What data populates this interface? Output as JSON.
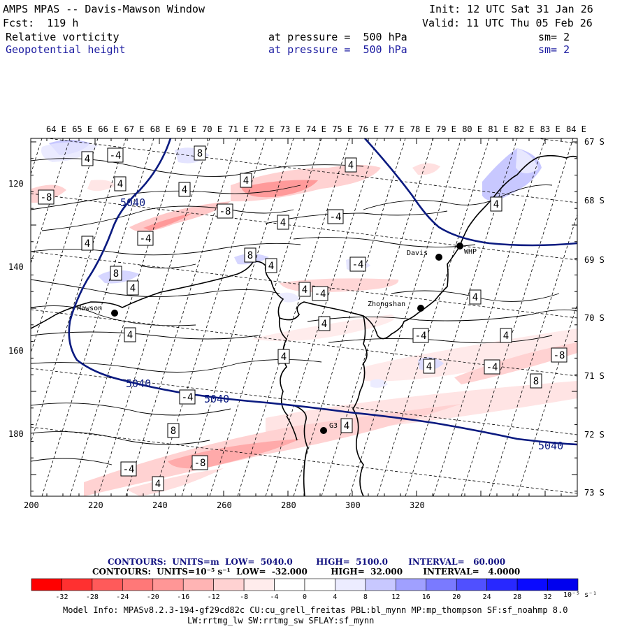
{
  "header": {
    "title": "AMPS MPAS -- Davis-Mawson Window",
    "init": "Init: 12 UTC Sat 31 Jan 26",
    "fcst": "Fcst:  119 h",
    "valid": "Valid: 11 UTC Thu 05 Feb 26",
    "field1": {
      "name": "Relative vorticity",
      "pressure": "at pressure =  500 hPa",
      "sm": "sm= 2"
    },
    "field2": {
      "name": "Geopotential height",
      "pressure": "at pressure =  500 hPa",
      "sm": "sm= 2"
    }
  },
  "map": {
    "top_lon_labels": [
      "64 E",
      "65 E",
      "66 E",
      "67 E",
      "68 E",
      "69 E",
      "70 E",
      "71 E",
      "72 E",
      "73 E",
      "74 E",
      "75 E",
      "76 E",
      "77 E",
      "78 E",
      "79 E",
      "80 E",
      "81 E",
      "82 E",
      "83 E",
      "84 E"
    ],
    "right_lat_labels": [
      "67 S",
      "68 S",
      "69 S",
      "70 S",
      "71 S",
      "72 S",
      "73 S"
    ],
    "x_ticks": [
      "200",
      "220",
      "240",
      "260",
      "280",
      "300",
      "320"
    ],
    "y_ticks": [
      "120",
      "140",
      "160",
      "180"
    ],
    "stations": [
      {
        "name": "Mawson"
      },
      {
        "name": "Davis"
      },
      {
        "name": "WHP"
      },
      {
        "name": "Zhongshan"
      },
      {
        "name": "G3"
      }
    ],
    "height_labels": [
      "5040",
      "5040",
      "5040",
      "5040"
    ],
    "vort_labels": [
      "4",
      "-4",
      "8",
      "4",
      "4",
      "-8",
      "4",
      "4",
      "-8",
      "-4",
      "4",
      "-4",
      "4",
      "8",
      "8",
      "4",
      "4",
      "-4",
      "4",
      "4",
      "4",
      "4",
      "-4",
      "4",
      "-8",
      "4",
      "-4",
      "4",
      "-4",
      "8",
      "8",
      "4",
      "4",
      "-4",
      "-8",
      "-4",
      "4"
    ],
    "colors": {
      "height_contour": "#0a1a80",
      "coast": "#000000",
      "contour": "#000000"
    }
  },
  "contour_info": {
    "line1": "CONTOURS:  UNITS=m  LOW=  5040.0        HIGH=  5100.0       INTERVAL=   60.000",
    "line2": "CONTOURS:  UNITS=10⁻⁵ s⁻¹  LOW=  -32.000        HIGH=  32.000       INTERVAL=   4.0000"
  },
  "colorbar": {
    "colors": [
      "#ff0000",
      "#ff3030",
      "#ff5a5a",
      "#ff7878",
      "#ff9696",
      "#ffb4b4",
      "#ffd2d2",
      "#ffecec",
      "#ffffff",
      "#ffffff",
      "#ececff",
      "#c8c8ff",
      "#a0a0ff",
      "#7a7aff",
      "#5050ff",
      "#2828ff",
      "#0a0aff",
      "#0000ee"
    ],
    "tick_labels": [
      "-32",
      "-28",
      "-24",
      "-20",
      "-16",
      "-12",
      "-8",
      "-4",
      "0",
      "4",
      "8",
      "12",
      "16",
      "20",
      "24",
      "28",
      "32"
    ],
    "units": "10⁻⁵ s⁻¹"
  },
  "footer": {
    "line1": "Model Info: MPASv8.2.3-194-gf29cd82c CU:cu_grell_freitas PBL:bl_mynn MP:mp_thompson SF:sf_noahmp 8.0",
    "line2": "LW:rrtmg_lw SW:rrtmg_sw SFLAY:sf_mynn"
  }
}
